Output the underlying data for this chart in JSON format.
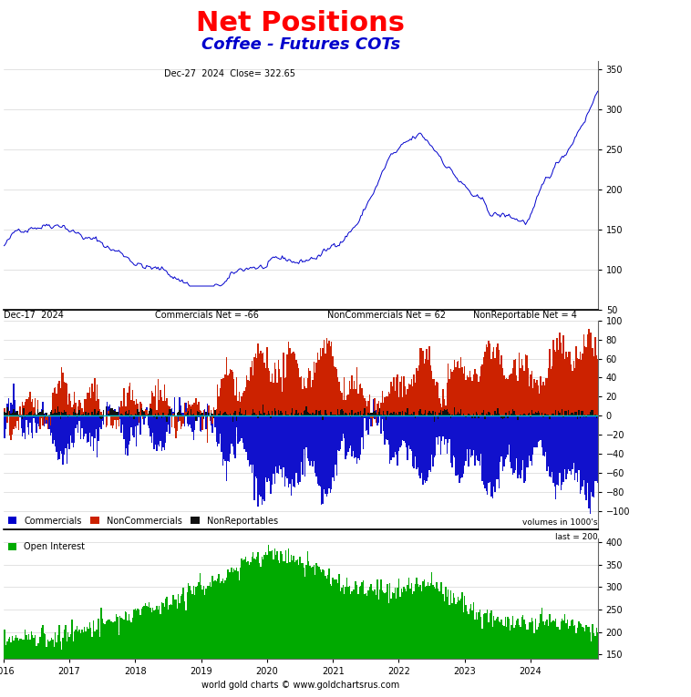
{
  "title": "Net Positions",
  "subtitle": "Coffee - Futures COTs",
  "title_color": "#ff0000",
  "subtitle_color": "#0000cc",
  "annotation_top": "Dec-27  2024  Close= 322.65",
  "ann_cot_date": "Dec-17  2024",
  "ann_cot_comm": "Commercials Net = -66",
  "ann_cot_nc": "NonCommercials Net = 62",
  "ann_cot_nr": "NonReportable Net = 4",
  "price_ylim": [
    50,
    360
  ],
  "price_yticks": [
    50,
    100,
    150,
    200,
    250,
    300,
    350
  ],
  "cot_ylim": [
    -120,
    100
  ],
  "cot_yticks": [
    -100,
    -80,
    -60,
    -40,
    -20,
    0,
    20,
    40,
    60,
    80,
    100
  ],
  "oi_ylim": [
    140,
    410
  ],
  "oi_yticks": [
    150,
    200,
    250,
    300,
    350,
    400
  ],
  "xlabel": "world gold charts © www.goldchartsrus.com",
  "xtick_labels": [
    "2016",
    "2017",
    "2018",
    "2019",
    "2020",
    "2021",
    "2022",
    "2023",
    "2024"
  ],
  "volumes_label": "volumes in 1000's",
  "last_label": "last = 200",
  "legend1_items": [
    "Commercials",
    "NonCommercials",
    "NonReportables"
  ],
  "legend1_colors": [
    "#0000cc",
    "#cc2200",
    "#111111"
  ],
  "legend2_items": [
    "Open Interest"
  ],
  "legend2_colors": [
    "#00aa00"
  ],
  "background_color": "#ffffff",
  "grid_color": "#cccccc",
  "num_weeks": 470,
  "comm_color": "#1111cc",
  "nc_color": "#cc2200",
  "nr_color": "#111111",
  "oi_color": "#00aa00",
  "price_color": "#0000cc",
  "zero_line_color": "#00cccc"
}
